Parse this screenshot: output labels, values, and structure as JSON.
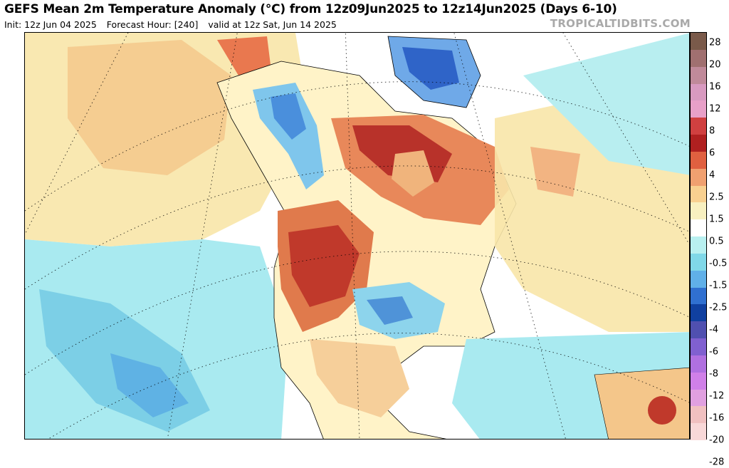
{
  "header": {
    "title": "GEFS Mean 2m Temperature Anomaly (°C) from 12z09Jun2025 to 12z14Jun2025 (Days 6-10)",
    "init": "Init: 12z Jun 04 2025",
    "forecast_hour": "Forecast Hour: [240]",
    "valid": "valid at 12z Sat, Jun 14 2025",
    "credit": "TROPICALTIDBITS.COM"
  },
  "map": {
    "region": "North America",
    "projection": "polar stereographic",
    "anomaly_areas": [
      {
        "region": "Western United States",
        "anomaly": "warm",
        "level": "4 to 6"
      },
      {
        "region": "Central Canada / Hudson Bay",
        "anomaly": "warm",
        "level": "4 to 6"
      },
      {
        "region": "Alaska",
        "anomaly": "warm",
        "level": "2.5 to 4"
      },
      {
        "region": "Southern Plains (Oklahoma/Texas)",
        "anomaly": "cool",
        "level": "-1.5 to -4"
      },
      {
        "region": "British Columbia / Yukon",
        "anomaly": "cool",
        "level": "-1.5 to -2.5"
      },
      {
        "region": "Greenland",
        "anomaly": "cool",
        "level": "-2.5 to -6"
      },
      {
        "region": "Eastern Pacific",
        "anomaly": "cool",
        "level": "-0.5 to -2.5"
      },
      {
        "region": "Northern South America",
        "anomaly": "warm",
        "level": "4 to 6"
      }
    ]
  },
  "colorbar": {
    "ticks": [
      {
        "label": "28"
      },
      {
        "label": "20"
      },
      {
        "label": "16"
      },
      {
        "label": "12"
      },
      {
        "label": "8"
      },
      {
        "label": "6"
      },
      {
        "label": "4"
      },
      {
        "label": "2.5"
      },
      {
        "label": "1.5"
      },
      {
        "label": "0.5"
      },
      {
        "label": "-0.5"
      },
      {
        "label": "-1.5"
      },
      {
        "label": "-2.5"
      },
      {
        "label": "-4"
      },
      {
        "label": "-6"
      },
      {
        "label": "-8"
      },
      {
        "label": "-12"
      },
      {
        "label": "-16"
      },
      {
        "label": "-20"
      },
      {
        "label": "-28"
      }
    ],
    "colors": [
      "#7a5a4a",
      "#a07070",
      "#c08a9a",
      "#d89ac0",
      "#e8a0c8",
      "#d04040",
      "#b02020",
      "#e06040",
      "#f0a070",
      "#f8d090",
      "#f8f0c0",
      "#ffffff",
      "#b8f0f0",
      "#80d8e8",
      "#60b0e8",
      "#3070d0",
      "#1040a0",
      "#5050b0",
      "#8060d0",
      "#b070e0",
      "#d080e8",
      "#e0a0e0",
      "#f0c0c0",
      "#f8d8d8"
    ]
  }
}
